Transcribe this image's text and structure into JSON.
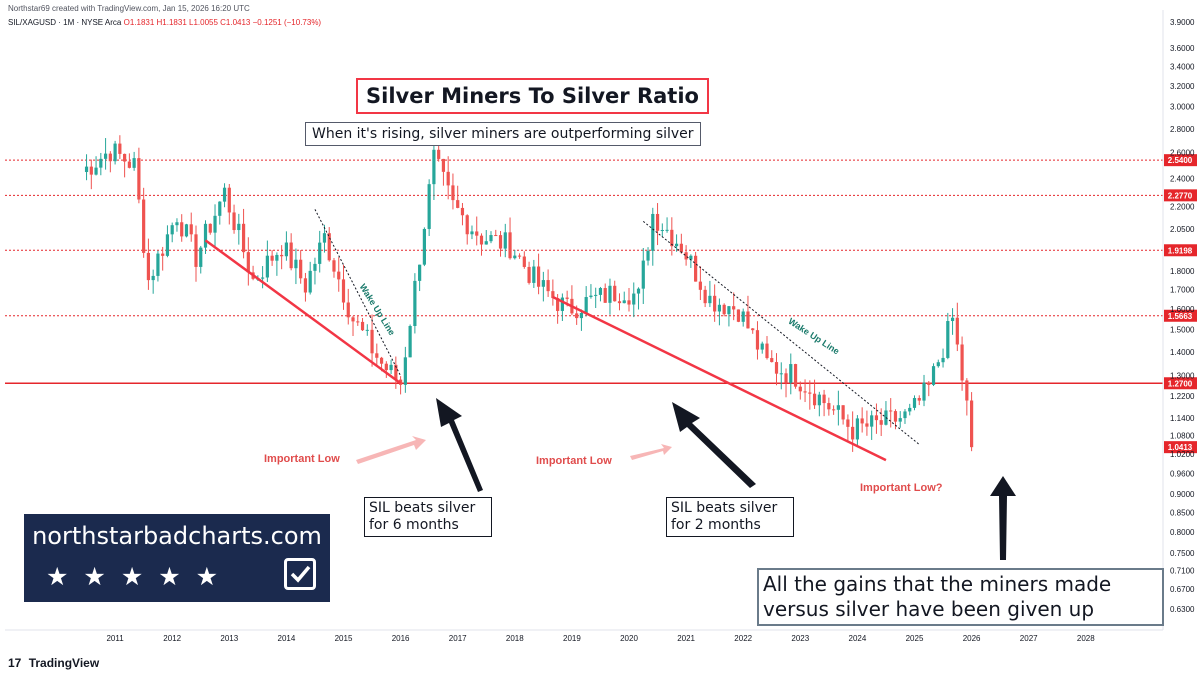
{
  "header": {
    "credit": "Northstar69 created with TradingView.com, Jan 15, 2026 16:20 UTC",
    "symbol": "SIL/XAGUSD · 1M · NYSE Arca",
    "ohlc": "O1.1831 H1.1831 L1.0055 C1.0413 −0.1251 (−10.73%)"
  },
  "annotations": {
    "title": "Silver Miners To Silver Ratio",
    "subtitle": "When it's rising, silver miners are outperforming silver",
    "beat6": [
      "SIL beats silver",
      "for 6 months"
    ],
    "beat2": [
      "SIL beats silver",
      "for 2 months"
    ],
    "gains": [
      "All the gains that the miners made",
      "versus silver have been given up"
    ],
    "important_low_1": "Important Low",
    "important_low_2": "Important Low",
    "important_low_3": "Important Low?",
    "wake_up_1": "Wake Up Line",
    "wake_up_2": "Wake Up Line"
  },
  "brand": {
    "text": "northstarbadcharts.com",
    "stars": "★★★★★"
  },
  "footer": {
    "logo_mark": "17",
    "logo_text": "TradingView"
  },
  "colors": {
    "up": "#26a69a",
    "down": "#ef5350",
    "trend": "#f23645",
    "level": "#e5262b"
  },
  "chart_data": {
    "type": "candlestick",
    "title": "Silver Miners To Silver Ratio",
    "symbol": "SIL/XAGUSD",
    "interval": "1M",
    "y_scale": "log",
    "ylim": [
      0.59,
      4.05
    ],
    "x_range": [
      "2010-01",
      "2028-12"
    ],
    "y_ticks": [
      3.9,
      3.6,
      3.4,
      3.2,
      3.0,
      2.8,
      2.6,
      2.4,
      2.2,
      2.05,
      1.8,
      1.7,
      1.6,
      1.5,
      1.4,
      1.3,
      1.22,
      1.14,
      1.08,
      1.02,
      0.96,
      0.9,
      0.85,
      0.8,
      0.75,
      0.71,
      0.67,
      0.63
    ],
    "x_ticks": [
      "2011",
      "2012",
      "2013",
      "2014",
      "2015",
      "2016",
      "2017",
      "2018",
      "2019",
      "2020",
      "2021",
      "2022",
      "2023",
      "2024",
      "2025",
      "2026",
      "2027",
      "2028"
    ],
    "price_labels": [
      {
        "value": 2.54,
        "style": "dotted"
      },
      {
        "value": 2.277,
        "style": "dotted"
      },
      {
        "value": 1.9198,
        "style": "dotted"
      },
      {
        "value": 1.5663,
        "style": "dotted"
      },
      {
        "value": 1.27,
        "style": "solid"
      },
      {
        "value": 1.0413,
        "style": "last"
      }
    ],
    "trendlines": [
      {
        "name": "down trend 1",
        "from": [
          "2012-08",
          1.98
        ],
        "to": [
          "2016-01",
          1.27
        ]
      },
      {
        "name": "down trend 2",
        "from": [
          "2018-09",
          1.66
        ],
        "to": [
          "2024-07",
          1.0
        ]
      },
      {
        "name": "Wake Up Line",
        "from": [
          "2014-07",
          2.18
        ],
        "to": [
          "2016-01",
          1.3
        ]
      },
      {
        "name": "Wake Up Line",
        "from": [
          "2020-04",
          2.1
        ],
        "to": [
          "2025-02",
          1.05
        ]
      }
    ],
    "anchors": [
      [
        "2010-06",
        2.45
      ],
      [
        "2010-12",
        2.62
      ],
      [
        "2011-05",
        2.5
      ],
      [
        "2011-08",
        1.75
      ],
      [
        "2012-02",
        2.15
      ],
      [
        "2012-06",
        1.88
      ],
      [
        "2012-12",
        2.3
      ],
      [
        "2013-06",
        1.75
      ],
      [
        "2013-12",
        1.95
      ],
      [
        "2014-05",
        1.72
      ],
      [
        "2014-09",
        2.0
      ],
      [
        "2015-03",
        1.55
      ],
      [
        "2015-09",
        1.35
      ],
      [
        "2016-01",
        1.27
      ],
      [
        "2016-08",
        2.55
      ],
      [
        "2016-12",
        2.2
      ],
      [
        "2017-06",
        2.0
      ],
      [
        "2017-12",
        1.95
      ],
      [
        "2018-06",
        1.72
      ],
      [
        "2018-12",
        1.6
      ],
      [
        "2019-06",
        1.65
      ],
      [
        "2019-12",
        1.7
      ],
      [
        "2020-03",
        1.66
      ],
      [
        "2020-06",
        2.15
      ],
      [
        "2020-12",
        1.95
      ],
      [
        "2021-06",
        1.65
      ],
      [
        "2021-12",
        1.6
      ],
      [
        "2022-06",
        1.35
      ],
      [
        "2022-12",
        1.3
      ],
      [
        "2023-06",
        1.2
      ],
      [
        "2023-12",
        1.1
      ],
      [
        "2024-06",
        1.12
      ],
      [
        "2024-12",
        1.15
      ],
      [
        "2025-04",
        1.25
      ],
      [
        "2025-09",
        1.55
      ],
      [
        "2025-12",
        1.18
      ],
      [
        "2026-01",
        1.0413
      ]
    ]
  }
}
